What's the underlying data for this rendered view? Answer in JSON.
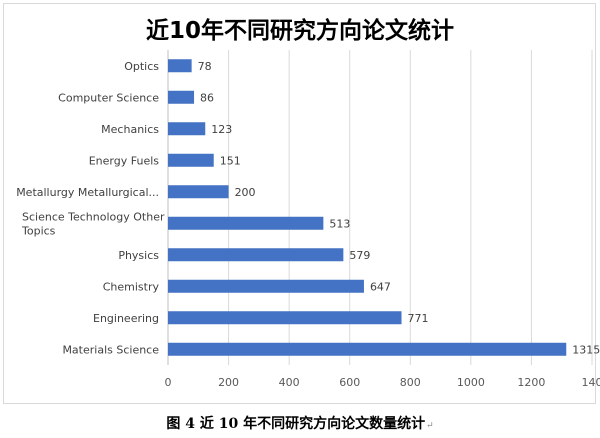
{
  "caption": "图 4  近 10 年不同研究方向论文数量统计",
  "caption_mark": "↵",
  "chart_data": {
    "type": "bar",
    "orientation": "horizontal",
    "title": "近10年不同研究方向论文统计",
    "categories": [
      "Optics",
      "Computer Science",
      "Mechanics",
      "Energy Fuels",
      "Metallurgy Metallurgical...",
      "Science Technology Other Topics",
      "Physics",
      "Chemistry",
      "Engineering",
      "Materials Science"
    ],
    "values": [
      78,
      86,
      123,
      151,
      200,
      513,
      579,
      647,
      771,
      1315
    ],
    "xlim": [
      0,
      1400
    ],
    "xticks": [
      "0",
      "200",
      "400",
      "600",
      "800",
      "1000",
      "1200",
      "140"
    ],
    "grid": true,
    "legend": false,
    "bar_color": "#4472c4"
  }
}
